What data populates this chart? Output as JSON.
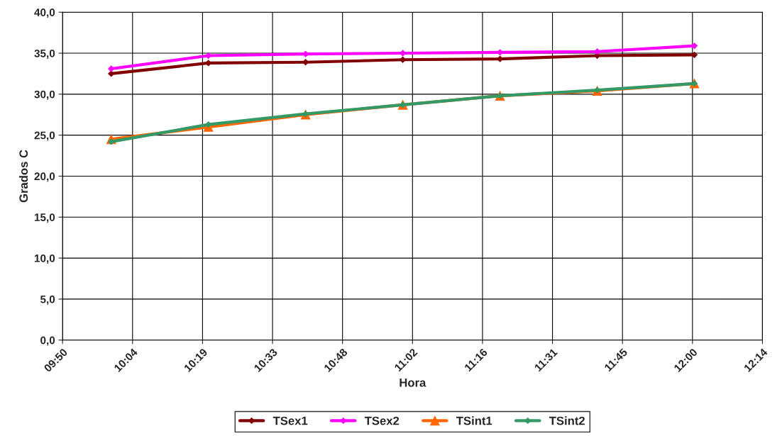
{
  "chart_data": {
    "type": "line",
    "xlabel": "Hora",
    "ylabel": "Grados C",
    "x": [
      10.0,
      10.3333,
      10.6667,
      11.0,
      11.3333,
      11.6667,
      12.0
    ],
    "series": [
      {
        "name": "TSex1",
        "color": "#800000",
        "marker": "diamond",
        "values": [
          32.5,
          33.8,
          33.9,
          34.2,
          34.3,
          34.7,
          34.8
        ]
      },
      {
        "name": "TSex2",
        "color": "#ff00ff",
        "marker": "diamond",
        "values": [
          33.1,
          34.7,
          34.9,
          35.0,
          35.1,
          35.2,
          35.9
        ]
      },
      {
        "name": "TSint1",
        "color": "#ff6600",
        "marker": "triangle",
        "values": [
          24.5,
          26.0,
          27.5,
          28.7,
          29.8,
          30.4,
          31.3
        ]
      },
      {
        "name": "TSint2",
        "color": "#339966",
        "marker": "diamond",
        "values": [
          24.2,
          26.3,
          27.6,
          28.7,
          29.8,
          30.5,
          31.3
        ]
      }
    ],
    "xlim": [
      9.8333,
      12.2333
    ],
    "xticks": [
      {
        "value": 9.8333,
        "label": "09:50"
      },
      {
        "value": 10.0733,
        "label": "10:04"
      },
      {
        "value": 10.3133,
        "label": "10:19"
      },
      {
        "value": 10.5533,
        "label": "10:33"
      },
      {
        "value": 10.7933,
        "label": "10:48"
      },
      {
        "value": 11.0333,
        "label": "11:02"
      },
      {
        "value": 11.2733,
        "label": "11:16"
      },
      {
        "value": 11.5133,
        "label": "11:31"
      },
      {
        "value": 11.7533,
        "label": "11:45"
      },
      {
        "value": 11.9933,
        "label": "12:00"
      },
      {
        "value": 12.2333,
        "label": "12:14"
      }
    ],
    "ylim": [
      0,
      40
    ],
    "yticks": [
      {
        "value": 0,
        "label": "0,0"
      },
      {
        "value": 5,
        "label": "5,0"
      },
      {
        "value": 10,
        "label": "10,0"
      },
      {
        "value": 15,
        "label": "15,0"
      },
      {
        "value": 20,
        "label": "20,0"
      },
      {
        "value": 25,
        "label": "25,0"
      },
      {
        "value": 30,
        "label": "30,0"
      },
      {
        "value": 35,
        "label": "35,0"
      },
      {
        "value": 40,
        "label": "40,0"
      }
    ],
    "grid": true,
    "legend": "bottom",
    "line_style": "solid"
  }
}
